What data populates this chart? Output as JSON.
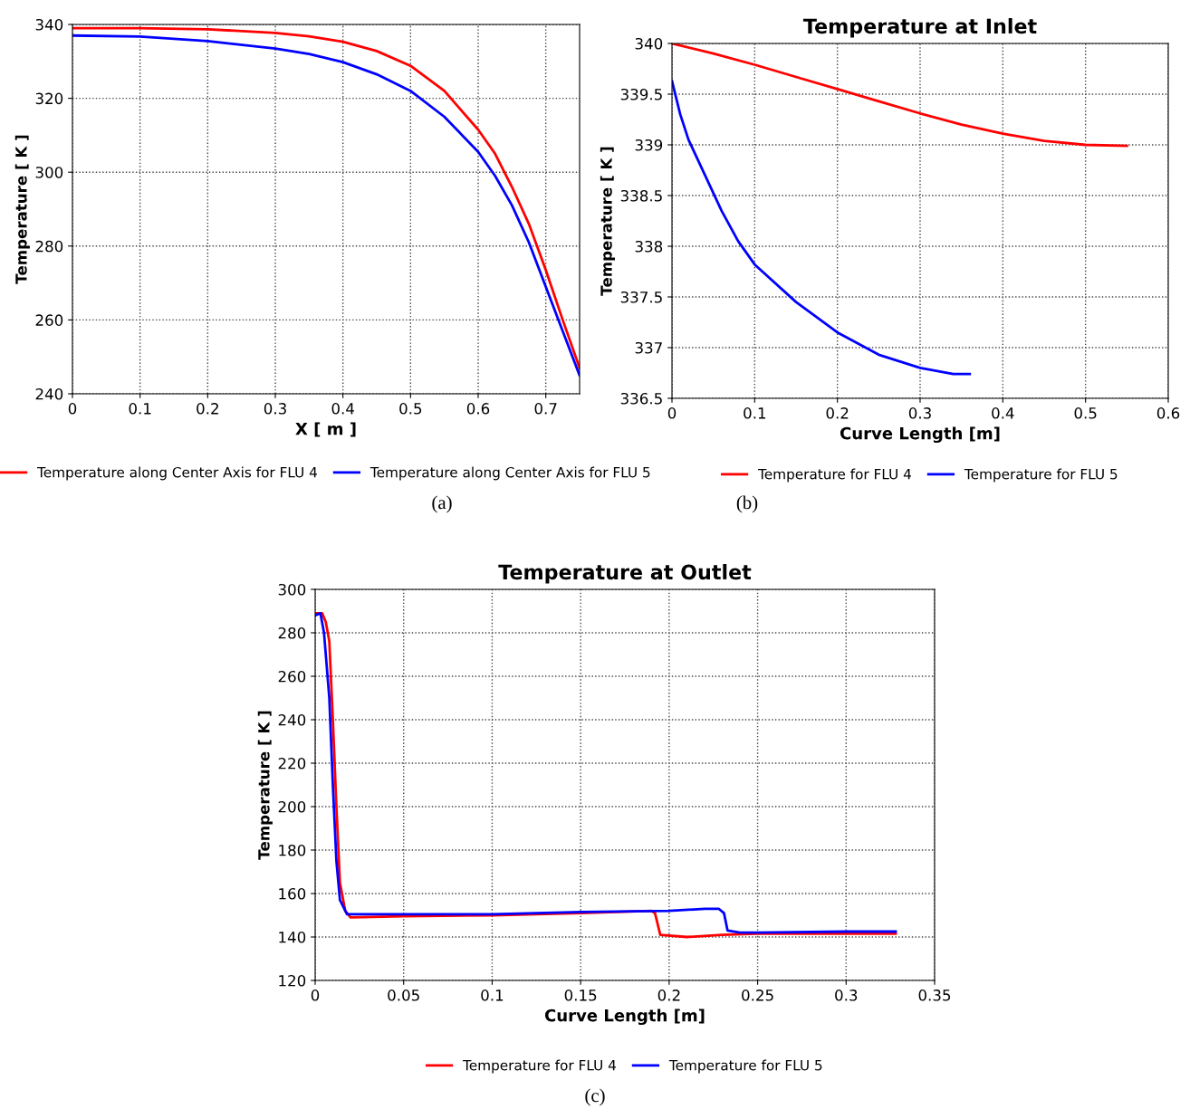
{
  "chart_data": [
    {
      "type": "line",
      "xlabel": "X [ m ]",
      "ylabel": "Temperature [ K ]",
      "xlim": [
        0,
        0.75
      ],
      "ylim": [
        240,
        340
      ],
      "xticks": [
        0,
        0.1,
        0.2,
        0.3,
        0.4,
        0.5,
        0.6,
        0.7
      ],
      "yticks": [
        240,
        260,
        280,
        300,
        320,
        340
      ],
      "grid": true,
      "legend": "bottom",
      "annotations": [
        "(a)"
      ],
      "series": [
        {
          "name": "Temperature along Center Axis for FLU 4",
          "color": "#ff0000",
          "x": [
            0,
            0.1,
            0.2,
            0.3,
            0.35,
            0.4,
            0.45,
            0.5,
            0.55,
            0.6,
            0.625,
            0.65,
            0.675,
            0.7,
            0.725,
            0.75
          ],
          "values": [
            339,
            339,
            338.7,
            337.7,
            336.8,
            335.3,
            332.8,
            328.8,
            322,
            311.5,
            305,
            296,
            286,
            273.5,
            260,
            247
          ]
        },
        {
          "name": "Temperature along Center Axis for FLU 5",
          "color": "#0000ff",
          "x": [
            0,
            0.1,
            0.2,
            0.3,
            0.35,
            0.4,
            0.45,
            0.5,
            0.55,
            0.6,
            0.625,
            0.65,
            0.675,
            0.7,
            0.725,
            0.75
          ],
          "values": [
            337,
            336.7,
            335.5,
            333.5,
            332,
            329.8,
            326.5,
            322,
            315,
            305.5,
            299,
            291,
            281,
            269,
            257,
            245
          ]
        }
      ]
    },
    {
      "type": "line",
      "title": "Temperature at Inlet",
      "xlabel": "Curve Length [m]",
      "ylabel": "Temperature [ K ]",
      "xlim": [
        0,
        0.6
      ],
      "ylim": [
        336.5,
        340
      ],
      "xticks": [
        0,
        0.1,
        0.2,
        0.3,
        0.4,
        0.5,
        0.6
      ],
      "yticks": [
        336.5,
        337,
        337.5,
        338,
        338.5,
        339,
        339.5,
        340
      ],
      "grid": true,
      "legend": "bottom",
      "annotations": [
        "(b)"
      ],
      "series": [
        {
          "name": "Temperature for FLU 4",
          "color": "#ff0000",
          "x": [
            0,
            0.05,
            0.1,
            0.15,
            0.2,
            0.25,
            0.3,
            0.35,
            0.4,
            0.45,
            0.5,
            0.55
          ],
          "values": [
            340,
            339.9,
            339.79,
            339.67,
            339.55,
            339.43,
            339.31,
            339.2,
            339.11,
            339.04,
            339.0,
            338.99
          ]
        },
        {
          "name": "Temperature for FLU 5",
          "color": "#0000ff",
          "x": [
            0,
            0.01,
            0.02,
            0.04,
            0.06,
            0.08,
            0.1,
            0.15,
            0.2,
            0.25,
            0.3,
            0.34,
            0.36
          ],
          "values": [
            339.63,
            339.3,
            339.05,
            338.7,
            338.35,
            338.05,
            337.82,
            337.45,
            337.15,
            336.93,
            336.8,
            336.74,
            336.74
          ]
        }
      ]
    },
    {
      "type": "line",
      "title": "Temperature at Outlet",
      "xlabel": "Curve Length [m]",
      "ylabel": "Temperature [ K ]",
      "xlim": [
        0,
        0.35
      ],
      "ylim": [
        120,
        300
      ],
      "xticks": [
        0,
        0.05,
        0.1,
        0.15,
        0.2,
        0.25,
        0.3,
        0.35
      ],
      "yticks": [
        120,
        140,
        160,
        180,
        200,
        220,
        240,
        260,
        280,
        300
      ],
      "grid": true,
      "legend": "bottom",
      "annotations": [
        "(c)"
      ],
      "series": [
        {
          "name": "Temperature for FLU 4",
          "color": "#ff0000",
          "x": [
            0,
            0.004,
            0.006,
            0.008,
            0.01,
            0.012,
            0.014,
            0.017,
            0.02,
            0.05,
            0.1,
            0.15,
            0.19,
            0.192,
            0.195,
            0.21,
            0.23,
            0.25,
            0.3,
            0.328
          ],
          "values": [
            289,
            289,
            285,
            276,
            240,
            200,
            165,
            152,
            149,
            149.5,
            150,
            151,
            152,
            151,
            141,
            140,
            141,
            141.5,
            141.5,
            141.5
          ]
        },
        {
          "name": "Temperature for FLU 5",
          "color": "#0000ff",
          "x": [
            0,
            0.003,
            0.005,
            0.008,
            0.01,
            0.012,
            0.014,
            0.018,
            0.05,
            0.1,
            0.15,
            0.2,
            0.22,
            0.228,
            0.231,
            0.233,
            0.24,
            0.25,
            0.3,
            0.328
          ],
          "values": [
            288,
            289,
            280,
            250,
            210,
            175,
            157,
            150.5,
            150.5,
            150.5,
            151.5,
            152,
            153,
            153,
            151,
            143,
            142,
            142,
            142.5,
            142.5
          ]
        }
      ]
    }
  ]
}
